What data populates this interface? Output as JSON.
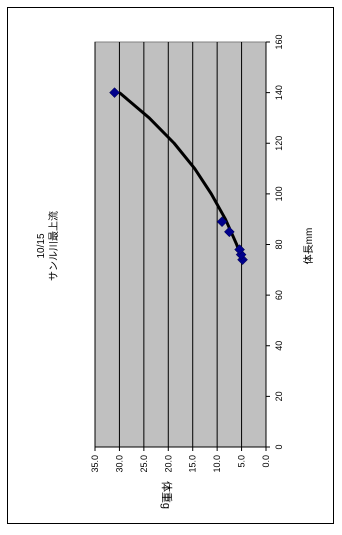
{
  "chart_data": {
    "type": "scatter",
    "orientation": "rotated-90",
    "title": "10/15",
    "subtitle": "サンル川最上流",
    "xlabel": "体長mm",
    "ylabel": "体重g",
    "xlim": [
      0,
      160
    ],
    "ylim": [
      0,
      35
    ],
    "x_ticks": [
      "0",
      "20",
      "40",
      "60",
      "80",
      "100",
      "120",
      "140",
      "160"
    ],
    "y_ticks": [
      "0.0",
      "5.0",
      "10.0",
      "15.0",
      "20.0",
      "25.0",
      "30.0",
      "35.0"
    ],
    "grid": true,
    "legend": "none",
    "points": [
      {
        "x": 74,
        "y": 4.8
      },
      {
        "x": 76,
        "y": 5.1
      },
      {
        "x": 78,
        "y": 5.4
      },
      {
        "x": 85,
        "y": 7.5
      },
      {
        "x": 89,
        "y": 9.0
      },
      {
        "x": 140,
        "y": 31.0
      }
    ],
    "trendline": [
      {
        "x": 74,
        "y": 4.9
      },
      {
        "x": 80,
        "y": 6.0
      },
      {
        "x": 90,
        "y": 8.3
      },
      {
        "x": 100,
        "y": 11.2
      },
      {
        "x": 110,
        "y": 14.6
      },
      {
        "x": 120,
        "y": 18.8
      },
      {
        "x": 130,
        "y": 23.9
      },
      {
        "x": 140,
        "y": 30.0
      }
    ],
    "colors": {
      "plot_background": "#c0c0c0",
      "gridline": "#000000",
      "marker": "#00008b",
      "trendline": "#000000"
    }
  }
}
